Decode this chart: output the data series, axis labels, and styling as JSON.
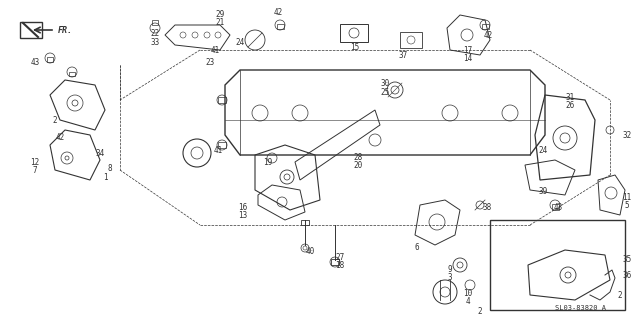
{
  "bg_color": "#ffffff",
  "line_color": "#333333",
  "diagram_code": "SL03-83820 A",
  "arrow_label": "FR.",
  "fig_width": 6.35,
  "fig_height": 3.2,
  "dpi": 100
}
